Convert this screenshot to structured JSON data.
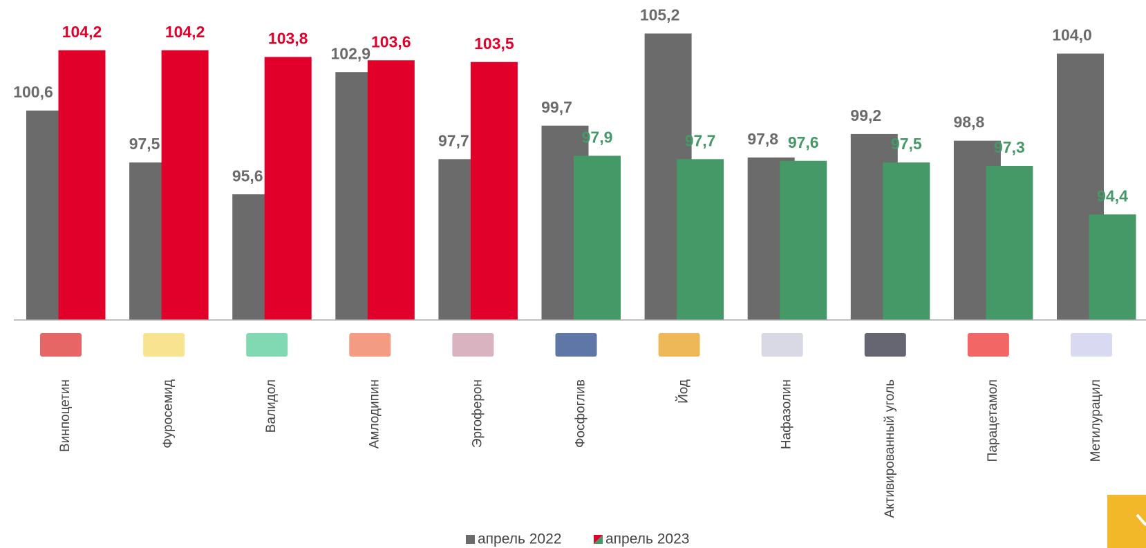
{
  "chart_data": {
    "type": "bar",
    "categories": [
      "Винпоцетин",
      "Фуросемид",
      "Валидол",
      "Амлодипин",
      "Эргоферон",
      "Фосфоглив",
      "Йод",
      "Нафазолин",
      "Активированный уголь",
      "Парацетамол",
      "Метилурацил"
    ],
    "series": [
      {
        "name": "апрель 2022",
        "color": "#6b6b6b",
        "values": [
          100.6,
          97.5,
          95.6,
          102.9,
          97.7,
          99.7,
          105.2,
          97.8,
          99.2,
          98.8,
          104.0
        ],
        "value_labels": [
          "100,6",
          "97,5",
          "95,6",
          "102,9",
          "97,7",
          "99,7",
          "105,2",
          "97,8",
          "99,2",
          "98,8",
          "104,0"
        ]
      },
      {
        "name": "апрель 2023",
        "colors": [
          "#e0002a",
          "#e0002a",
          "#e0002a",
          "#e0002a",
          "#e0002a",
          "#449966",
          "#449966",
          "#449966",
          "#449966",
          "#449966",
          "#449966"
        ],
        "values": [
          104.2,
          104.2,
          103.8,
          103.6,
          103.5,
          97.9,
          97.7,
          97.6,
          97.5,
          97.3,
          94.4
        ],
        "value_labels": [
          "104,2",
          "104,2",
          "103,8",
          "103,6",
          "103,5",
          "97,9",
          "97,7",
          "97,6",
          "97,5",
          "97,3",
          "94,4"
        ]
      }
    ],
    "ylim": [
      88.1,
      107.2
    ]
  }
}
